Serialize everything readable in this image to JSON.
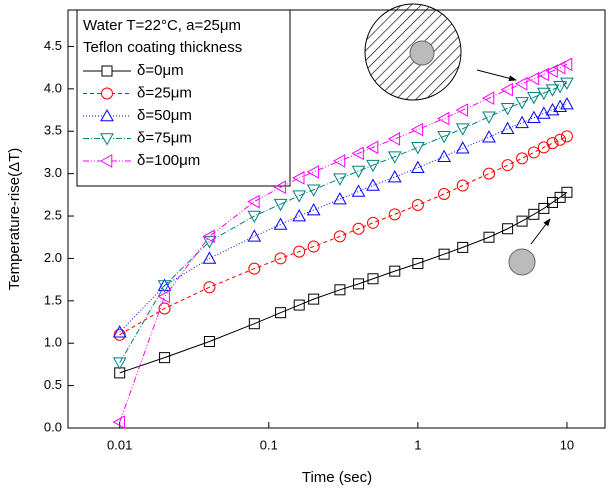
{
  "chart_data": {
    "type": "line",
    "x_label": "Time (sec)",
    "y_label": "Temperature-rise(ΔT)",
    "x_scale": "log",
    "legend": "upper left",
    "legend_title": [
      "Water T=22°C, a=25μm",
      "Teflon coating thickness"
    ],
    "x": [
      0.01,
      0.02,
      0.04,
      0.08,
      0.12,
      0.16,
      0.2,
      0.3,
      0.4,
      0.5,
      0.7,
      1,
      1.5,
      2,
      3,
      4,
      5,
      6,
      7,
      8,
      9,
      10
    ],
    "series": [
      {
        "name": "δ=0μm",
        "color": "#000000",
        "marker": "square",
        "dash": "",
        "values": [
          0.65,
          0.83,
          1.02,
          1.23,
          1.36,
          1.45,
          1.52,
          1.63,
          1.7,
          1.76,
          1.85,
          1.94,
          2.05,
          2.13,
          2.25,
          2.35,
          2.44,
          2.52,
          2.59,
          2.66,
          2.72,
          2.78
        ]
      },
      {
        "name": "δ=25μm",
        "color": "#ff0000",
        "marker": "circle",
        "dash": "4 3",
        "values": [
          1.1,
          1.41,
          1.66,
          1.88,
          2.0,
          2.08,
          2.14,
          2.26,
          2.35,
          2.42,
          2.52,
          2.63,
          2.76,
          2.86,
          3.0,
          3.1,
          3.18,
          3.25,
          3.31,
          3.36,
          3.4,
          3.44
        ]
      },
      {
        "name": "δ=50μm",
        "color": "#0000ff",
        "marker": "triangle-up",
        "dash": "1 2",
        "values": [
          1.13,
          1.68,
          2.0,
          2.26,
          2.4,
          2.5,
          2.57,
          2.7,
          2.79,
          2.86,
          2.96,
          3.07,
          3.2,
          3.3,
          3.43,
          3.53,
          3.6,
          3.66,
          3.71,
          3.75,
          3.79,
          3.82
        ]
      },
      {
        "name": "δ=75μm",
        "color": "#008080",
        "marker": "triangle-down",
        "dash": "6 2 1 2",
        "values": [
          0.77,
          1.68,
          2.2,
          2.5,
          2.64,
          2.74,
          2.81,
          2.94,
          3.03,
          3.1,
          3.2,
          3.31,
          3.44,
          3.53,
          3.67,
          3.77,
          3.84,
          3.9,
          3.95,
          3.99,
          4.03,
          4.07
        ]
      },
      {
        "name": "δ=100μm",
        "color": "#ff00ff",
        "marker": "triangle-left",
        "dash": "6 2 1 2 1 2",
        "values": [
          0.07,
          1.55,
          2.26,
          2.67,
          2.84,
          2.95,
          3.02,
          3.15,
          3.24,
          3.31,
          3.41,
          3.52,
          3.65,
          3.75,
          3.89,
          3.99,
          4.06,
          4.12,
          4.17,
          4.21,
          4.25,
          4.29
        ]
      }
    ],
    "xlim": [
      0.0045,
      18
    ],
    "xticks": [
      0.01,
      0.1,
      1,
      10
    ],
    "ylim": [
      0,
      4.93
    ],
    "yticks": [
      {
        "value": 0,
        "label": "0.0"
      },
      0.5,
      {
        "value": 1,
        "label": "1.0"
      },
      1.5,
      {
        "value": 2,
        "label": "2.0"
      },
      2.5,
      {
        "value": 3,
        "label": "3.0"
      },
      3.5,
      {
        "value": 4,
        "label": "4.0"
      },
      4.5
    ]
  }
}
